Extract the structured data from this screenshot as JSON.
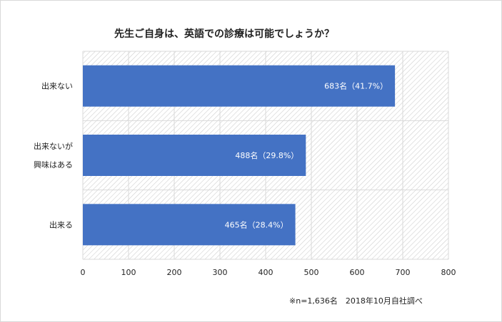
{
  "chart_data": {
    "type": "bar",
    "orientation": "horizontal",
    "title": "先生ご自身は、英語での診療は可能でしょうか？",
    "categories": [
      [
        "出来ない"
      ],
      [
        "出来ないが",
        "興味はある"
      ],
      [
        "出来る"
      ]
    ],
    "values": [
      683,
      488,
      465
    ],
    "data_labels": [
      "683名（41.7%）",
      "488名（29.8%）",
      "465名（28.4%）"
    ],
    "xlim": [
      0,
      800
    ],
    "xticks": [
      "0",
      "100",
      "200",
      "300",
      "400",
      "500",
      "600",
      "700",
      "800"
    ],
    "xlabel": "",
    "ylabel": "",
    "grid": true,
    "legend": "none",
    "bar_color": "#4472c4",
    "plot_background": "hatched",
    "footnote": "※n=1,636名　2018年10月自社調べ"
  }
}
